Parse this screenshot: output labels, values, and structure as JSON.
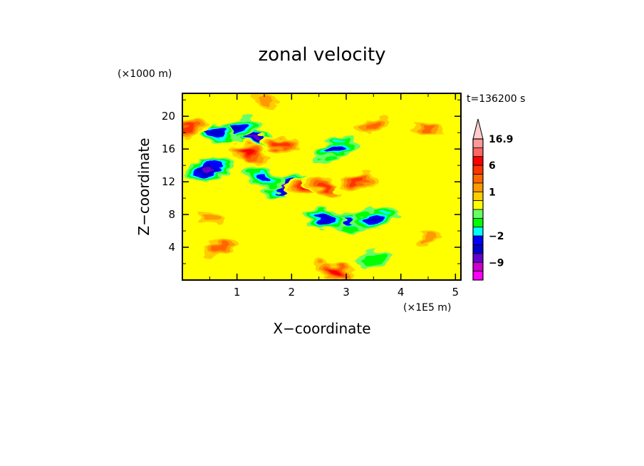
{
  "chart_data": {
    "type": "heatmap",
    "title": "zonal velocity",
    "xlabel": "X−coordinate",
    "ylabel": "Z−coordinate",
    "x_unit": "(×1E5 m)",
    "y_unit": "(×1000 m)",
    "time_label": "t=136200 s",
    "xlim": [
      0,
      5.1
    ],
    "ylim": [
      0,
      22.8
    ],
    "x_ticks": [
      1,
      2,
      3,
      4,
      5
    ],
    "y_ticks": [
      4,
      8,
      12,
      16,
      20
    ],
    "grid": false,
    "colorbar": {
      "placement": "right",
      "levels": [
        -13,
        -9,
        -6,
        -4,
        -2,
        -1,
        -0.5,
        0,
        0.5,
        1,
        2,
        4,
        6,
        9,
        13,
        16.9
      ],
      "colors": [
        "#ff00ff",
        "#cc00cc",
        "#6600cc",
        "#0000cc",
        "#0000ff",
        "#00ffff",
        "#00ff00",
        "#66ff66",
        "#ffff00",
        "#ffcc00",
        "#ff9900",
        "#ff6600",
        "#ff3300",
        "#ff0000",
        "#ff6666",
        "#ff9999",
        "#ffcccc"
      ],
      "tick_labels": [
        {
          "value": 16.9,
          "label": "16.9"
        },
        {
          "value": 6,
          "label": "6"
        },
        {
          "value": 1,
          "label": "1"
        },
        {
          "value": -2,
          "label": "−2"
        },
        {
          "value": -9,
          "label": "−9"
        }
      ]
    },
    "features": [
      {
        "x": 0.5,
        "z": 13.5,
        "value": -8
      },
      {
        "x": 1.3,
        "z": 17.5,
        "value": -7
      },
      {
        "x": 1.0,
        "z": 18.5,
        "value": -6
      },
      {
        "x": 0.6,
        "z": 18.0,
        "value": -5
      },
      {
        "x": 1.9,
        "z": 11.5,
        "value": -7
      },
      {
        "x": 1.5,
        "z": 12.5,
        "value": -4
      },
      {
        "x": 2.8,
        "z": 16.0,
        "value": -5
      },
      {
        "x": 3.0,
        "z": 7.0,
        "value": -4
      },
      {
        "x": 3.5,
        "z": 7.5,
        "value": -6
      },
      {
        "x": 2.6,
        "z": 7.5,
        "value": -5
      },
      {
        "x": 0.1,
        "z": 18.5,
        "value": 6
      },
      {
        "x": 1.2,
        "z": 15.5,
        "value": 7
      },
      {
        "x": 2.3,
        "z": 11.5,
        "value": 8
      },
      {
        "x": 2.6,
        "z": 11.5,
        "value": 6
      },
      {
        "x": 3.2,
        "z": 12.0,
        "value": 6
      },
      {
        "x": 1.8,
        "z": 16.5,
        "value": 5
      },
      {
        "x": 0.7,
        "z": 4.0,
        "value": 4
      },
      {
        "x": 2.8,
        "z": 1.0,
        "value": 9
      },
      {
        "x": 3.5,
        "z": 19.0,
        "value": 4
      },
      {
        "x": 4.5,
        "z": 18.5,
        "value": 3
      },
      {
        "x": 3.5,
        "z": 2.5,
        "value": -1
      },
      {
        "x": 1.5,
        "z": 22.0,
        "value": 2
      },
      {
        "x": 4.5,
        "z": 5.0,
        "value": 2
      },
      {
        "x": 0.5,
        "z": 7.5,
        "value": 2
      }
    ]
  }
}
